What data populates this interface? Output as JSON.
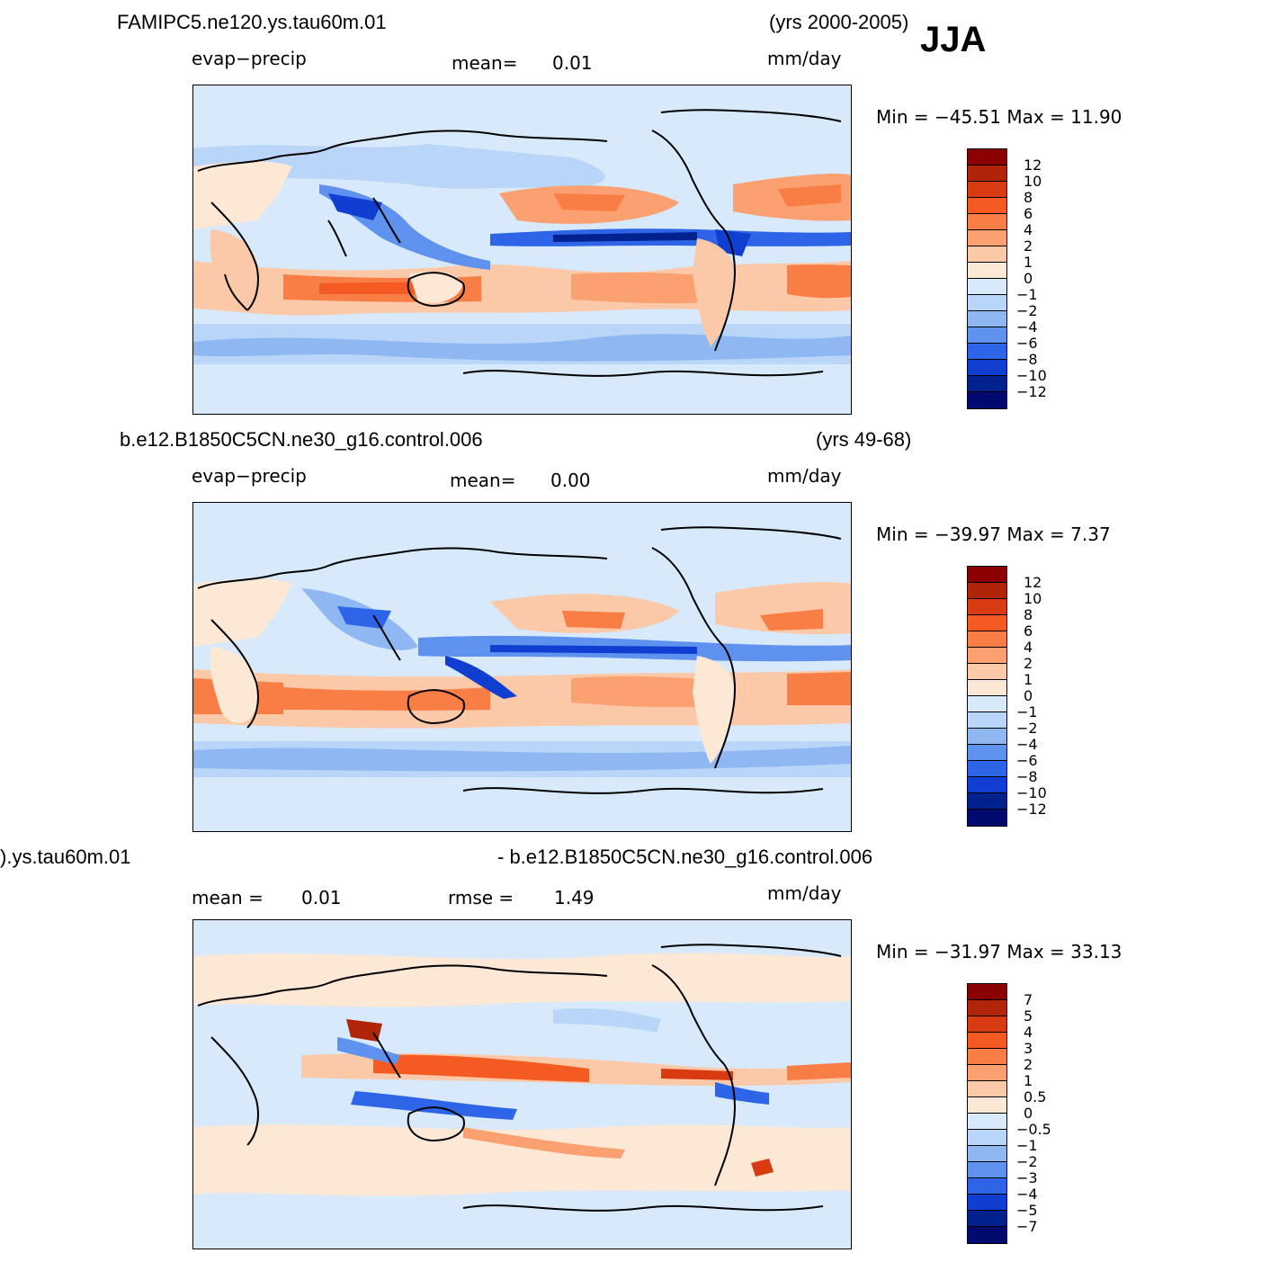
{
  "season": "JJA",
  "panels": [
    {
      "case": "FAMIPC5.ne120.ys.tau60m.01",
      "years": "(yrs 2000-2005)",
      "variable": "evap−precip",
      "stat1": "mean=",
      "stat1_value": "0.01",
      "units": "mm/day",
      "minmax": "Min  =  −45.51  Max  =    11.90",
      "colorbar_labels": [
        "12",
        "10",
        "8",
        "6",
        "4",
        "2",
        "1",
        "0",
        "−1",
        "−2",
        "−4",
        "−6",
        "−8",
        "−10",
        "−12"
      ]
    },
    {
      "case": "b.e12.B1850C5CN.ne30_g16.control.006",
      "years": "(yrs 49-68)",
      "variable": "evap−precip",
      "stat1": "mean=",
      "stat1_value": "0.00",
      "units": "mm/day",
      "minmax": "Min  =  −39.97  Max  =     7.37",
      "colorbar_labels": [
        "12",
        "10",
        "8",
        "6",
        "4",
        "2",
        "1",
        "0",
        "−1",
        "−2",
        "−4",
        "−6",
        "−8",
        "−10",
        "−12"
      ]
    },
    {
      "case_left": ").ys.tau60m.01",
      "case_right": "- b.e12.B1850C5CN.ne30_g16.control.006",
      "stat1": "mean  =",
      "stat1_value": "0.01",
      "stat2": "rmse  =",
      "stat2_value": "1.49",
      "units": "mm/day",
      "minmax": "Min  =  −31.97  Max  =    33.13",
      "colorbar_labels": [
        "7",
        "5",
        "4",
        "3",
        "2",
        "1",
        "0.5",
        "0",
        "−0.5",
        "−1",
        "−2",
        "−3",
        "−4",
        "−5",
        "−7"
      ]
    }
  ],
  "colors": {
    "abs_scale": [
      "#8b0000",
      "#b0240a",
      "#d83a12",
      "#f55a22",
      "#f97e45",
      "#fba070",
      "#fcc9a8",
      "#fde8d6",
      "#d7e9fb",
      "#b9d5f7",
      "#8fb8f3",
      "#5f91ef",
      "#2e65e8",
      "#0f3ed0",
      "#00228f",
      "#000a6e"
    ],
    "diff_scale": [
      "#8b0000",
      "#b0240a",
      "#d83a12",
      "#f55a22",
      "#f97e45",
      "#fba070",
      "#fcc9a8",
      "#fde8d6",
      "#d7e9fb",
      "#b9d5f7",
      "#8fb8f3",
      "#5f91ef",
      "#2e65e8",
      "#0f3ed0",
      "#00228f",
      "#000a6e"
    ],
    "background_field": "#d7e9fb"
  }
}
